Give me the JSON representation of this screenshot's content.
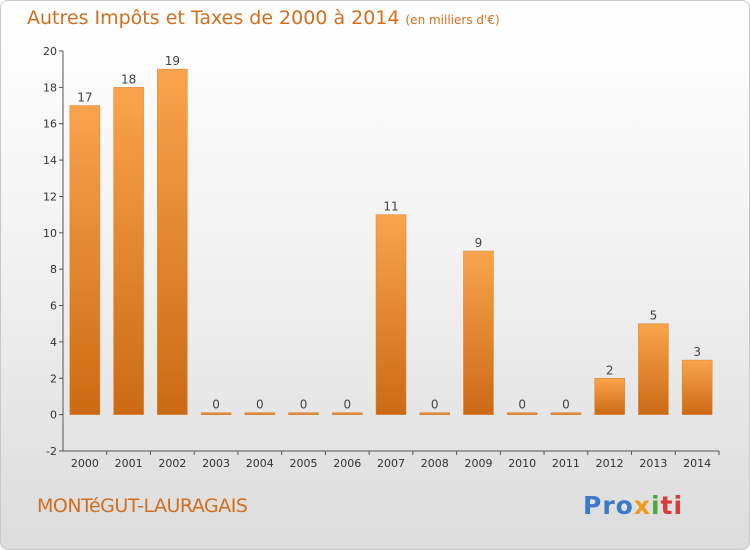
{
  "title": "Autres Impôts et Taxes de 2000 à 2014",
  "unit_note": "(en milliers d'€)",
  "commune": "MONTéGUT-LAURAGAIS",
  "brand": {
    "p1": "Pro",
    "p2": "x",
    "p3": "i",
    "p4": "ti"
  },
  "colors": {
    "bar_light": "#f9a44c",
    "bar_dark": "#cc6a14",
    "text": "#d26e1e"
  },
  "chart_data": {
    "type": "bar",
    "categories": [
      "2000",
      "2001",
      "2002",
      "2003",
      "2004",
      "2005",
      "2006",
      "2007",
      "2008",
      "2009",
      "2010",
      "2011",
      "2012",
      "2013",
      "2014"
    ],
    "values": [
      17,
      18,
      19,
      0,
      0,
      0,
      0,
      11,
      0,
      9,
      0,
      0,
      2,
      5,
      3
    ],
    "ylim": [
      -2,
      20
    ],
    "yticks": [
      -2,
      0,
      2,
      4,
      6,
      8,
      10,
      12,
      14,
      16,
      18,
      20
    ],
    "grid": false,
    "data_labels": true
  }
}
